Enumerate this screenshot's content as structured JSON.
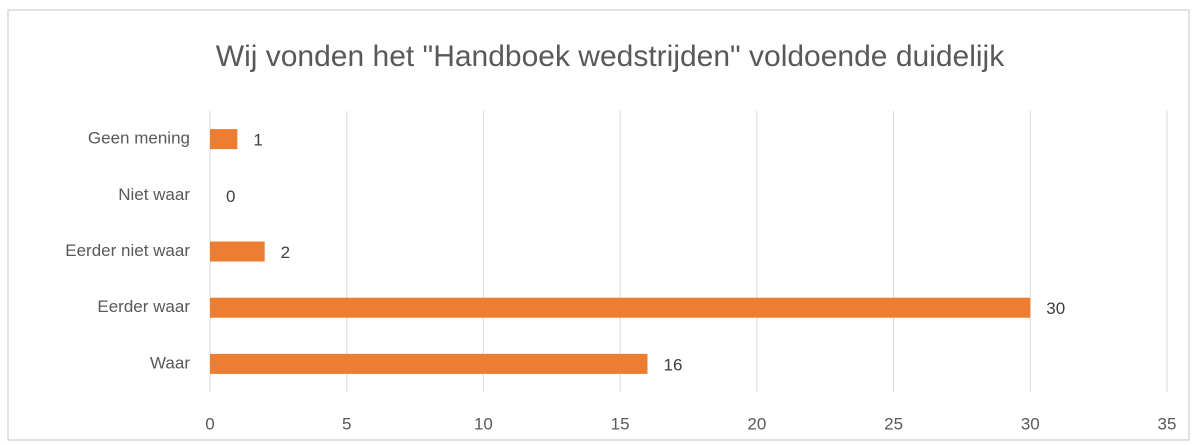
{
  "chart_data": {
    "type": "bar",
    "orientation": "horizontal",
    "title": "Wij vonden het \"Handboek wedstrijden\" voldoende duidelijk",
    "categories": [
      "Geen mening",
      "Niet waar",
      "Eerder niet waar",
      "Eerder waar",
      "Waar"
    ],
    "values": [
      1,
      0,
      2,
      30,
      16
    ],
    "color": "#ed7d31",
    "xlim": [
      0,
      35
    ],
    "xticks": [
      0,
      5,
      10,
      15,
      20,
      25,
      30,
      35
    ],
    "grid": true
  }
}
